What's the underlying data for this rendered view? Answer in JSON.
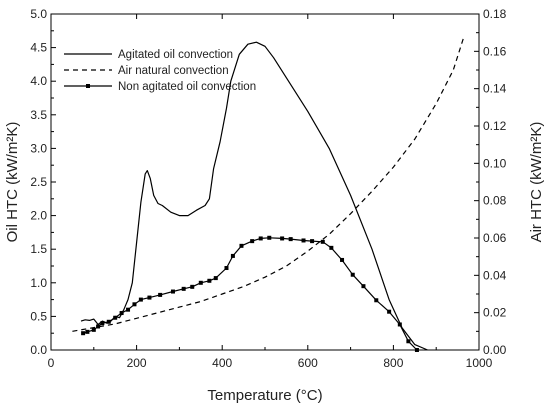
{
  "chart_data": {
    "type": "line",
    "title": "",
    "xlabel": "Temperature (°C)",
    "ylabel_left": "Oil HTC (kW/m²K)",
    "ylabel_right": "Air HTC (kW/m²K)",
    "xlim": [
      0,
      1000
    ],
    "ylim_left": [
      0,
      5.0
    ],
    "ylim_right": [
      0,
      0.18
    ],
    "x_ticks": [
      "0",
      "200",
      "400",
      "600",
      "800",
      "1000"
    ],
    "y_left_ticks": [
      "0.0",
      "0.5",
      "1.0",
      "1.5",
      "2.0",
      "2.5",
      "3.0",
      "3.5",
      "4.0",
      "4.5",
      "5.0"
    ],
    "y_right_ticks": [
      "0.00",
      "0.02",
      "0.04",
      "0.06",
      "0.08",
      "0.10",
      "0.12",
      "0.14",
      "0.16",
      "0.18"
    ],
    "grid": false,
    "legend_position": "top-left",
    "series": [
      {
        "name": "Agitated oil convection",
        "axis": "left",
        "style": "solid",
        "color": "#000000",
        "points": [
          [
            70,
            0.43
          ],
          [
            80,
            0.45
          ],
          [
            90,
            0.44
          ],
          [
            100,
            0.46
          ],
          [
            110,
            0.38
          ],
          [
            120,
            0.43
          ],
          [
            130,
            0.4
          ],
          [
            140,
            0.43
          ],
          [
            150,
            0.5
          ],
          [
            160,
            0.48
          ],
          [
            170,
            0.6
          ],
          [
            180,
            0.75
          ],
          [
            190,
            1.0
          ],
          [
            200,
            1.6
          ],
          [
            210,
            2.2
          ],
          [
            220,
            2.62
          ],
          [
            225,
            2.67
          ],
          [
            232,
            2.55
          ],
          [
            240,
            2.3
          ],
          [
            250,
            2.18
          ],
          [
            260,
            2.15
          ],
          [
            280,
            2.05
          ],
          [
            300,
            2.0
          ],
          [
            320,
            2.0
          ],
          [
            340,
            2.08
          ],
          [
            360,
            2.15
          ],
          [
            370,
            2.25
          ],
          [
            380,
            2.7
          ],
          [
            395,
            3.1
          ],
          [
            410,
            3.6
          ],
          [
            420,
            4.0
          ],
          [
            440,
            4.4
          ],
          [
            460,
            4.55
          ],
          [
            480,
            4.58
          ],
          [
            500,
            4.52
          ],
          [
            520,
            4.35
          ],
          [
            550,
            4.05
          ],
          [
            600,
            3.55
          ],
          [
            650,
            3.0
          ],
          [
            700,
            2.3
          ],
          [
            750,
            1.5
          ],
          [
            790,
            0.75
          ],
          [
            820,
            0.33
          ],
          [
            850,
            0.08
          ],
          [
            880,
            0.0
          ]
        ]
      },
      {
        "name": "Air natural convection",
        "axis": "right",
        "style": "dashed",
        "color": "#000000",
        "points": [
          [
            50,
            0.01
          ],
          [
            100,
            0.012
          ],
          [
            150,
            0.014
          ],
          [
            200,
            0.017
          ],
          [
            250,
            0.02
          ],
          [
            300,
            0.023
          ],
          [
            350,
            0.026
          ],
          [
            400,
            0.03
          ],
          [
            450,
            0.034
          ],
          [
            500,
            0.039
          ],
          [
            550,
            0.045
          ],
          [
            600,
            0.053
          ],
          [
            650,
            0.062
          ],
          [
            700,
            0.073
          ],
          [
            750,
            0.085
          ],
          [
            800,
            0.098
          ],
          [
            850,
            0.113
          ],
          [
            900,
            0.132
          ],
          [
            940,
            0.15
          ],
          [
            965,
            0.168
          ]
        ]
      },
      {
        "name": "Non agitated oil convection",
        "axis": "left",
        "style": "solid-markers",
        "color": "#000000",
        "points": [
          [
            75,
            0.25
          ],
          [
            85,
            0.27
          ],
          [
            100,
            0.3
          ],
          [
            110,
            0.35
          ],
          [
            120,
            0.4
          ],
          [
            135,
            0.42
          ],
          [
            150,
            0.48
          ],
          [
            165,
            0.55
          ],
          [
            180,
            0.6
          ],
          [
            195,
            0.68
          ],
          [
            210,
            0.75
          ],
          [
            230,
            0.78
          ],
          [
            255,
            0.82
          ],
          [
            285,
            0.87
          ],
          [
            310,
            0.91
          ],
          [
            330,
            0.94
          ],
          [
            350,
            1.0
          ],
          [
            370,
            1.03
          ],
          [
            385,
            1.07
          ],
          [
            410,
            1.22
          ],
          [
            425,
            1.4
          ],
          [
            445,
            1.55
          ],
          [
            470,
            1.62
          ],
          [
            490,
            1.66
          ],
          [
            510,
            1.67
          ],
          [
            540,
            1.66
          ],
          [
            560,
            1.65
          ],
          [
            590,
            1.63
          ],
          [
            610,
            1.62
          ],
          [
            635,
            1.61
          ],
          [
            655,
            1.52
          ],
          [
            680,
            1.34
          ],
          [
            705,
            1.12
          ],
          [
            730,
            0.95
          ],
          [
            760,
            0.74
          ],
          [
            790,
            0.57
          ],
          [
            815,
            0.38
          ],
          [
            835,
            0.13
          ],
          [
            855,
            0.0
          ]
        ]
      }
    ]
  }
}
